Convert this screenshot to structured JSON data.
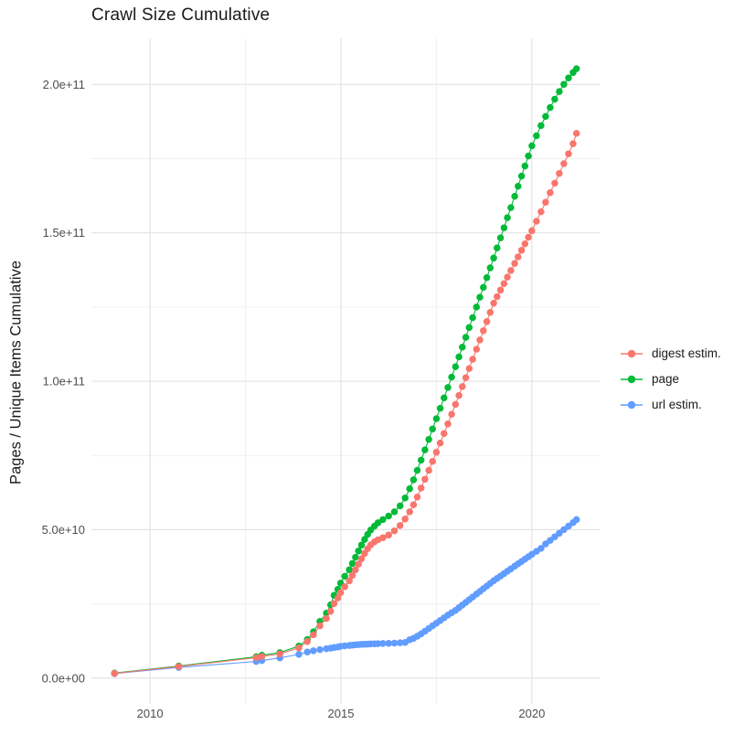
{
  "chart_data": {
    "type": "scatter",
    "title": "Crawl Size Cumulative",
    "xlabel": "",
    "ylabel": "Pages / Unique Items Cumulative",
    "values_unit": "1e9",
    "grid": true,
    "legend_position": "right",
    "background_color": "#ffffff",
    "major_grid_color": "#e3e3e3",
    "minor_grid_color": "#f0f0f0",
    "x_ticks": {
      "values": [
        2010,
        2015,
        2020
      ],
      "labels": [
        "2010",
        "2015",
        "2020"
      ]
    },
    "y_ticks": {
      "values": [
        0,
        50,
        100,
        150,
        200
      ],
      "labels": [
        "0.0e+00",
        "5.0e+10",
        "1.0e+11",
        "1.5e+11",
        "2.0e+11"
      ]
    },
    "xlim": [
      2008.47,
      2021.78
    ],
    "ylim_raw": [
      "-8.7e9",
      "2.155e11"
    ],
    "x": [
      2009.07,
      2010.75,
      2012.78,
      2012.93,
      2013.4,
      2013.9,
      2014.12,
      2014.28,
      2014.45,
      2014.62,
      2014.73,
      2014.82,
      2014.92,
      2014.99,
      2015.1,
      2015.22,
      2015.3,
      2015.38,
      2015.46,
      2015.54,
      2015.62,
      2015.7,
      2015.78,
      2015.88,
      2015.97,
      2016.1,
      2016.25,
      2016.4,
      2016.55,
      2016.68,
      2016.8,
      2016.9,
      2017.0,
      2017.1,
      2017.2,
      2017.3,
      2017.4,
      2017.5,
      2017.6,
      2017.7,
      2017.8,
      2017.9,
      2018.0,
      2018.09,
      2018.18,
      2018.27,
      2018.36,
      2018.45,
      2018.55,
      2018.64,
      2018.73,
      2018.82,
      2018.91,
      2019.0,
      2019.09,
      2019.18,
      2019.27,
      2019.36,
      2019.45,
      2019.55,
      2019.64,
      2019.73,
      2019.82,
      2019.91,
      2020.0,
      2020.12,
      2020.24,
      2020.36,
      2020.48,
      2020.6,
      2020.72,
      2020.84,
      2020.96,
      2021.08,
      2021.17
    ],
    "series": [
      {
        "name": "digest estim.",
        "label": "digest estim.",
        "color": "#F8766D",
        "values": [
          1.6,
          3.9,
          6.9,
          7.3,
          8.2,
          10.2,
          12.3,
          14.6,
          17.6,
          20.1,
          22.5,
          25.1,
          27.0,
          28.8,
          30.8,
          32.8,
          34.6,
          36.5,
          38.4,
          40.2,
          42.0,
          43.6,
          44.9,
          45.9,
          46.6,
          47.3,
          48.2,
          49.6,
          51.4,
          53.6,
          56.0,
          58.4,
          61.0,
          64.0,
          67.0,
          70.0,
          73.0,
          76.1,
          79.2,
          82.4,
          85.6,
          88.9,
          92.2,
          95.2,
          98.2,
          101.2,
          104.3,
          107.4,
          110.8,
          113.9,
          117.0,
          120.1,
          123.2,
          126.3,
          128.5,
          130.7,
          132.9,
          135.1,
          137.3,
          139.7,
          141.9,
          144.1,
          146.3,
          148.5,
          150.7,
          153.9,
          157.1,
          160.3,
          163.5,
          166.7,
          170.0,
          173.3,
          176.6,
          180.0,
          183.5
        ]
      },
      {
        "name": "page",
        "label": "page",
        "color": "#00BA38",
        "values": [
          1.7,
          4.1,
          7.2,
          7.7,
          8.6,
          10.8,
          13.0,
          15.6,
          19.1,
          21.9,
          24.7,
          27.9,
          29.9,
          32.0,
          34.3,
          36.5,
          38.6,
          40.7,
          42.8,
          44.8,
          46.7,
          48.4,
          49.9,
          51.2,
          52.3,
          53.4,
          54.6,
          56.0,
          58.0,
          60.7,
          63.8,
          66.8,
          70.0,
          73.4,
          76.9,
          80.4,
          83.9,
          87.4,
          90.9,
          94.4,
          97.9,
          101.4,
          104.9,
          108.2,
          111.5,
          114.8,
          118.1,
          121.4,
          125.0,
          128.3,
          131.6,
          134.9,
          138.2,
          141.5,
          144.9,
          148.3,
          151.7,
          155.1,
          158.5,
          162.3,
          165.7,
          169.1,
          172.5,
          175.9,
          179.3,
          182.7,
          186.1,
          189.2,
          192.2,
          195.0,
          197.6,
          200.0,
          202.2,
          204.0,
          205.3
        ]
      },
      {
        "name": "url estim.",
        "label": "url estim.",
        "color": "#619CFF",
        "values": [
          1.5,
          3.6,
          5.6,
          5.9,
          6.8,
          8.0,
          8.8,
          9.2,
          9.6,
          9.9,
          10.1,
          10.3,
          10.5,
          10.7,
          10.85,
          11.0,
          11.1,
          11.2,
          11.3,
          11.35,
          11.4,
          11.45,
          11.5,
          11.55,
          11.6,
          11.65,
          11.7,
          11.8,
          11.9,
          12.0,
          12.9,
          13.4,
          14.1,
          14.9,
          15.8,
          16.7,
          17.6,
          18.5,
          19.4,
          20.3,
          21.2,
          22.0,
          22.8,
          23.7,
          24.6,
          25.5,
          26.4,
          27.3,
          28.3,
          29.2,
          30.1,
          31.0,
          31.9,
          32.8,
          33.6,
          34.4,
          35.2,
          36.0,
          36.8,
          37.7,
          38.5,
          39.3,
          40.1,
          40.9,
          41.7,
          42.7,
          43.7,
          45.2,
          46.4,
          47.6,
          48.8,
          50.0,
          51.2,
          52.4,
          53.4
        ]
      }
    ],
    "z_order": [
      "page",
      "url estim.",
      "digest estim."
    ]
  }
}
